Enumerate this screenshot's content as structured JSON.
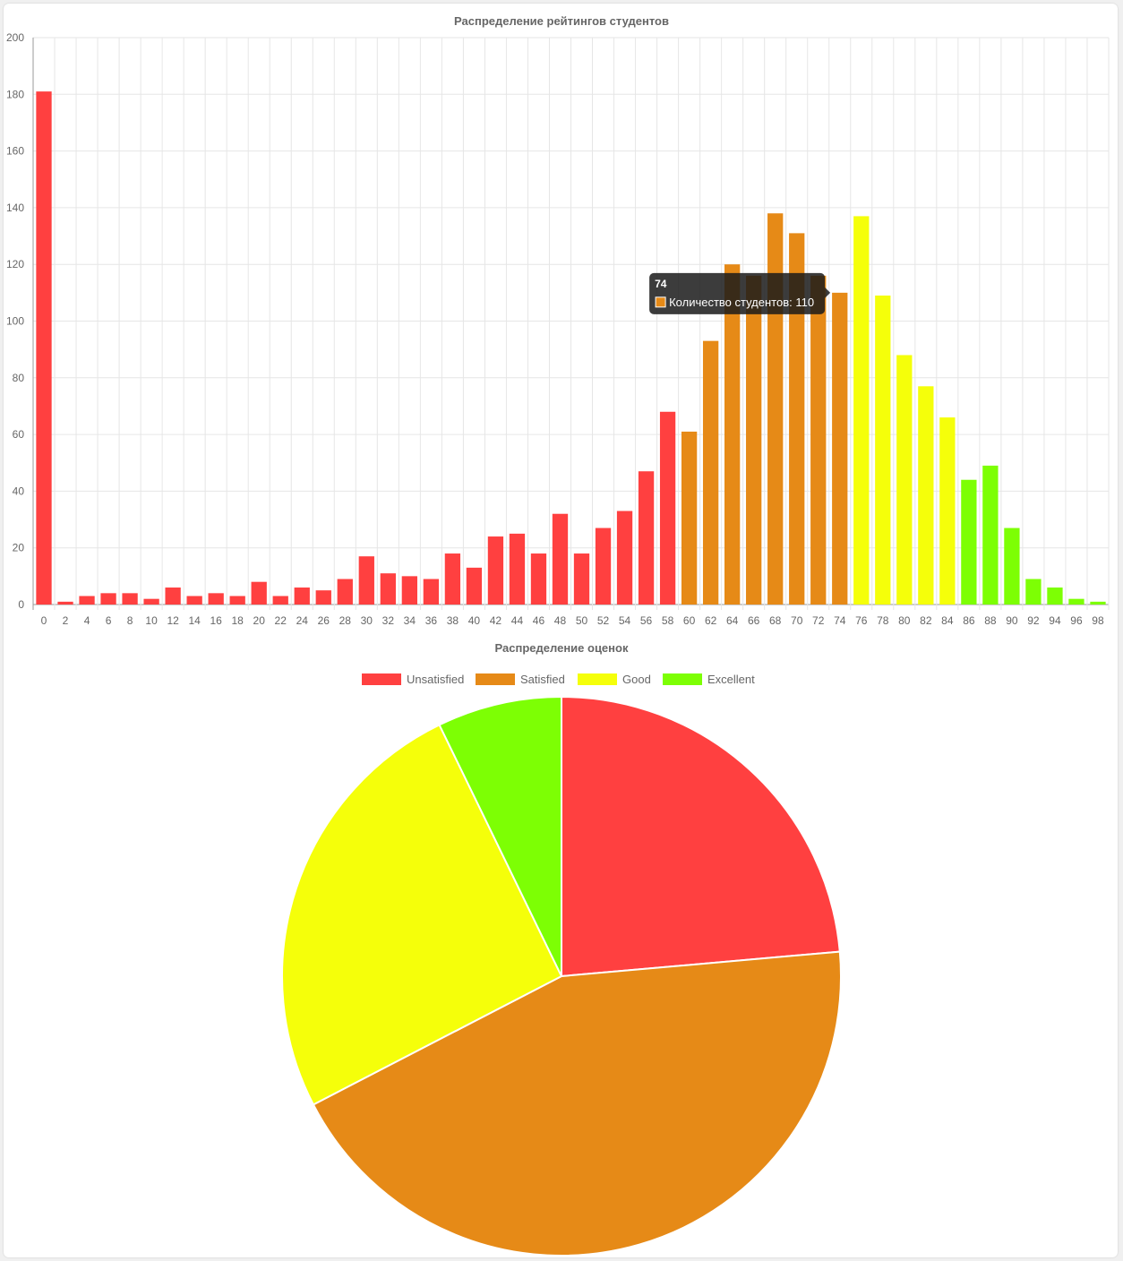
{
  "colors": {
    "unsatisfied": "#ff4040",
    "satisfied": "#e68a17",
    "good": "#f5ff0a",
    "excellent": "#7dff04",
    "grid": "#e6e6e6",
    "axis": "#999999",
    "tooltip_bg": "#1a1a1a"
  },
  "chart_data": [
    {
      "type": "bar",
      "title": "Распределение рейтингов студентов",
      "xlabel": "",
      "ylabel": "",
      "ylim": [
        0,
        200
      ],
      "y_ticks": [
        0,
        20,
        40,
        60,
        80,
        100,
        120,
        140,
        160,
        180,
        200
      ],
      "grid": true,
      "categories": [
        "0",
        "2",
        "4",
        "6",
        "8",
        "10",
        "12",
        "14",
        "16",
        "18",
        "20",
        "22",
        "24",
        "26",
        "28",
        "30",
        "32",
        "34",
        "36",
        "38",
        "40",
        "42",
        "44",
        "46",
        "48",
        "50",
        "52",
        "54",
        "56",
        "58",
        "60",
        "62",
        "64",
        "66",
        "68",
        "70",
        "72",
        "74",
        "76",
        "78",
        "80",
        "82",
        "84",
        "86",
        "88",
        "90",
        "92",
        "94",
        "96",
        "98"
      ],
      "series": [
        {
          "name": "Количество студентов",
          "values": [
            181,
            1,
            3,
            4,
            4,
            2,
            6,
            3,
            4,
            3,
            8,
            3,
            6,
            5,
            9,
            17,
            11,
            10,
            9,
            18,
            13,
            24,
            25,
            18,
            32,
            18,
            27,
            33,
            47,
            68,
            61,
            93,
            120,
            116,
            138,
            131,
            116,
            110,
            137,
            109,
            88,
            77,
            66,
            44,
            49,
            27,
            9,
            6,
            2,
            1
          ]
        }
      ],
      "bar_grades": [
        "unsatisfied",
        "unsatisfied",
        "unsatisfied",
        "unsatisfied",
        "unsatisfied",
        "unsatisfied",
        "unsatisfied",
        "unsatisfied",
        "unsatisfied",
        "unsatisfied",
        "unsatisfied",
        "unsatisfied",
        "unsatisfied",
        "unsatisfied",
        "unsatisfied",
        "unsatisfied",
        "unsatisfied",
        "unsatisfied",
        "unsatisfied",
        "unsatisfied",
        "unsatisfied",
        "unsatisfied",
        "unsatisfied",
        "unsatisfied",
        "unsatisfied",
        "unsatisfied",
        "unsatisfied",
        "unsatisfied",
        "unsatisfied",
        "unsatisfied",
        "satisfied",
        "satisfied",
        "satisfied",
        "satisfied",
        "satisfied",
        "satisfied",
        "satisfied",
        "satisfied",
        "good",
        "good",
        "good",
        "good",
        "good",
        "excellent",
        "excellent",
        "excellent",
        "excellent",
        "excellent",
        "excellent",
        "excellent"
      ],
      "tooltip": {
        "title": "74",
        "label": "Количество студентов: 110",
        "category": "74"
      }
    },
    {
      "type": "pie",
      "title": "Распределение оценок",
      "legend_position": "top",
      "labels": [
        "Unsatisfied",
        "Satisfied",
        "Good",
        "Excellent"
      ],
      "values": [
        23.6,
        43.8,
        25.4,
        7.2
      ],
      "grades": [
        "unsatisfied",
        "satisfied",
        "good",
        "excellent"
      ]
    }
  ]
}
